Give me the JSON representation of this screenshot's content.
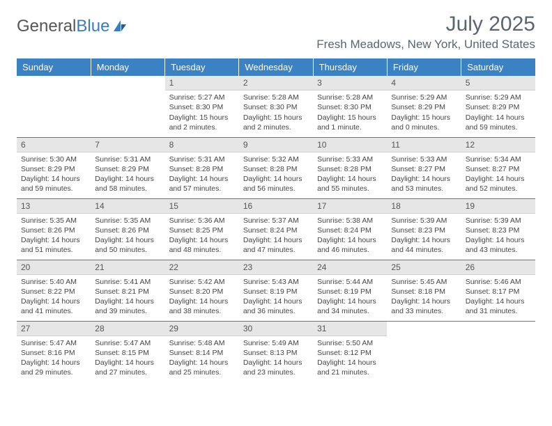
{
  "brand": {
    "part1": "General",
    "part2": "Blue"
  },
  "title": "July 2025",
  "location": "Fresh Meadows, New York, United States",
  "colors": {
    "header_bg": "#3a82c4",
    "header_text": "#ffffff",
    "daynum_bg": "#e6e6e6",
    "text": "#444444",
    "title_color": "#5a6570",
    "week_sep": "#3a82c4"
  },
  "typography": {
    "title_fontsize": 30,
    "location_fontsize": 17,
    "header_fontsize": 13,
    "cell_fontsize": 10.5
  },
  "day_headers": [
    "Sunday",
    "Monday",
    "Tuesday",
    "Wednesday",
    "Thursday",
    "Friday",
    "Saturday"
  ],
  "weeks": [
    [
      null,
      null,
      {
        "n": "1",
        "sr": "Sunrise: 5:27 AM",
        "ss": "Sunset: 8:30 PM",
        "dl": "Daylight: 15 hours and 2 minutes."
      },
      {
        "n": "2",
        "sr": "Sunrise: 5:28 AM",
        "ss": "Sunset: 8:30 PM",
        "dl": "Daylight: 15 hours and 2 minutes."
      },
      {
        "n": "3",
        "sr": "Sunrise: 5:28 AM",
        "ss": "Sunset: 8:30 PM",
        "dl": "Daylight: 15 hours and 1 minute."
      },
      {
        "n": "4",
        "sr": "Sunrise: 5:29 AM",
        "ss": "Sunset: 8:29 PM",
        "dl": "Daylight: 15 hours and 0 minutes."
      },
      {
        "n": "5",
        "sr": "Sunrise: 5:29 AM",
        "ss": "Sunset: 8:29 PM",
        "dl": "Daylight: 14 hours and 59 minutes."
      }
    ],
    [
      {
        "n": "6",
        "sr": "Sunrise: 5:30 AM",
        "ss": "Sunset: 8:29 PM",
        "dl": "Daylight: 14 hours and 59 minutes."
      },
      {
        "n": "7",
        "sr": "Sunrise: 5:31 AM",
        "ss": "Sunset: 8:29 PM",
        "dl": "Daylight: 14 hours and 58 minutes."
      },
      {
        "n": "8",
        "sr": "Sunrise: 5:31 AM",
        "ss": "Sunset: 8:28 PM",
        "dl": "Daylight: 14 hours and 57 minutes."
      },
      {
        "n": "9",
        "sr": "Sunrise: 5:32 AM",
        "ss": "Sunset: 8:28 PM",
        "dl": "Daylight: 14 hours and 56 minutes."
      },
      {
        "n": "10",
        "sr": "Sunrise: 5:33 AM",
        "ss": "Sunset: 8:28 PM",
        "dl": "Daylight: 14 hours and 55 minutes."
      },
      {
        "n": "11",
        "sr": "Sunrise: 5:33 AM",
        "ss": "Sunset: 8:27 PM",
        "dl": "Daylight: 14 hours and 53 minutes."
      },
      {
        "n": "12",
        "sr": "Sunrise: 5:34 AM",
        "ss": "Sunset: 8:27 PM",
        "dl": "Daylight: 14 hours and 52 minutes."
      }
    ],
    [
      {
        "n": "13",
        "sr": "Sunrise: 5:35 AM",
        "ss": "Sunset: 8:26 PM",
        "dl": "Daylight: 14 hours and 51 minutes."
      },
      {
        "n": "14",
        "sr": "Sunrise: 5:35 AM",
        "ss": "Sunset: 8:26 PM",
        "dl": "Daylight: 14 hours and 50 minutes."
      },
      {
        "n": "15",
        "sr": "Sunrise: 5:36 AM",
        "ss": "Sunset: 8:25 PM",
        "dl": "Daylight: 14 hours and 48 minutes."
      },
      {
        "n": "16",
        "sr": "Sunrise: 5:37 AM",
        "ss": "Sunset: 8:24 PM",
        "dl": "Daylight: 14 hours and 47 minutes."
      },
      {
        "n": "17",
        "sr": "Sunrise: 5:38 AM",
        "ss": "Sunset: 8:24 PM",
        "dl": "Daylight: 14 hours and 46 minutes."
      },
      {
        "n": "18",
        "sr": "Sunrise: 5:39 AM",
        "ss": "Sunset: 8:23 PM",
        "dl": "Daylight: 14 hours and 44 minutes."
      },
      {
        "n": "19",
        "sr": "Sunrise: 5:39 AM",
        "ss": "Sunset: 8:23 PM",
        "dl": "Daylight: 14 hours and 43 minutes."
      }
    ],
    [
      {
        "n": "20",
        "sr": "Sunrise: 5:40 AM",
        "ss": "Sunset: 8:22 PM",
        "dl": "Daylight: 14 hours and 41 minutes."
      },
      {
        "n": "21",
        "sr": "Sunrise: 5:41 AM",
        "ss": "Sunset: 8:21 PM",
        "dl": "Daylight: 14 hours and 39 minutes."
      },
      {
        "n": "22",
        "sr": "Sunrise: 5:42 AM",
        "ss": "Sunset: 8:20 PM",
        "dl": "Daylight: 14 hours and 38 minutes."
      },
      {
        "n": "23",
        "sr": "Sunrise: 5:43 AM",
        "ss": "Sunset: 8:19 PM",
        "dl": "Daylight: 14 hours and 36 minutes."
      },
      {
        "n": "24",
        "sr": "Sunrise: 5:44 AM",
        "ss": "Sunset: 8:19 PM",
        "dl": "Daylight: 14 hours and 34 minutes."
      },
      {
        "n": "25",
        "sr": "Sunrise: 5:45 AM",
        "ss": "Sunset: 8:18 PM",
        "dl": "Daylight: 14 hours and 33 minutes."
      },
      {
        "n": "26",
        "sr": "Sunrise: 5:46 AM",
        "ss": "Sunset: 8:17 PM",
        "dl": "Daylight: 14 hours and 31 minutes."
      }
    ],
    [
      {
        "n": "27",
        "sr": "Sunrise: 5:47 AM",
        "ss": "Sunset: 8:16 PM",
        "dl": "Daylight: 14 hours and 29 minutes."
      },
      {
        "n": "28",
        "sr": "Sunrise: 5:47 AM",
        "ss": "Sunset: 8:15 PM",
        "dl": "Daylight: 14 hours and 27 minutes."
      },
      {
        "n": "29",
        "sr": "Sunrise: 5:48 AM",
        "ss": "Sunset: 8:14 PM",
        "dl": "Daylight: 14 hours and 25 minutes."
      },
      {
        "n": "30",
        "sr": "Sunrise: 5:49 AM",
        "ss": "Sunset: 8:13 PM",
        "dl": "Daylight: 14 hours and 23 minutes."
      },
      {
        "n": "31",
        "sr": "Sunrise: 5:50 AM",
        "ss": "Sunset: 8:12 PM",
        "dl": "Daylight: 14 hours and 21 minutes."
      },
      null,
      null
    ]
  ]
}
